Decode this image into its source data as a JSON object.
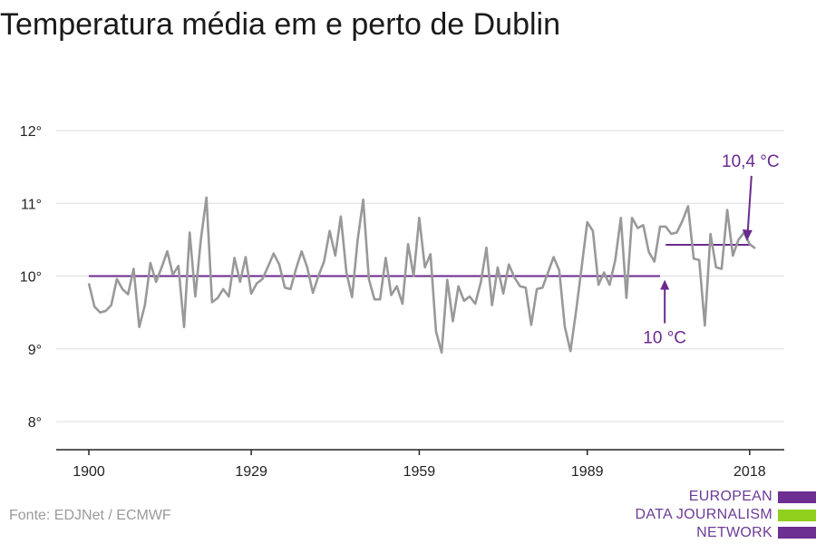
{
  "title": "Temperatura média em e perto de Dublin",
  "source": "Fonte: EDJNet / ECMWF",
  "logo": {
    "lines": [
      "EUROPEAN",
      "DATA JOURNALISM",
      "NETWORK"
    ],
    "colors": [
      "#6d2f91",
      "#8fd11d",
      "#6d2f91"
    ]
  },
  "colors": {
    "series": "#999999",
    "reference": "#6a2a8e",
    "grid": "#dddddd",
    "axis": "#222222"
  },
  "chart_data": {
    "type": "line",
    "title": "Temperatura média em e perto de Dublin",
    "xlabel": "",
    "ylabel": "",
    "xlim": [
      1900,
      2019
    ],
    "ylim": [
      7.6,
      12.4
    ],
    "grid": true,
    "x_ticks": [
      1900,
      1929,
      1959,
      1989,
      2018
    ],
    "y_ticks": [
      {
        "value": 8,
        "label": "8°"
      },
      {
        "value": 9,
        "label": "9°"
      },
      {
        "value": 10,
        "label": "10°"
      },
      {
        "value": 11,
        "label": "11°"
      },
      {
        "value": 12,
        "label": "12°"
      }
    ],
    "series": [
      {
        "x": [
          1900,
          1901,
          1902,
          1903,
          1904,
          1905,
          1906,
          1907,
          1908,
          1909,
          1910,
          1911,
          1912,
          1913,
          1914,
          1915,
          1916,
          1917,
          1918,
          1919,
          1920,
          1921,
          1922,
          1923,
          1924,
          1925,
          1926,
          1927,
          1928,
          1929,
          1930,
          1931,
          1932,
          1933,
          1934,
          1935,
          1936,
          1937,
          1938,
          1939,
          1940,
          1941,
          1942,
          1943,
          1944,
          1945,
          1946,
          1947,
          1948,
          1949,
          1950,
          1951,
          1952,
          1953,
          1954,
          1955,
          1956,
          1957,
          1958,
          1959,
          1960,
          1961,
          1962,
          1963,
          1964,
          1965,
          1966,
          1967,
          1968,
          1969,
          1970,
          1971,
          1972,
          1973,
          1974,
          1975,
          1976,
          1977,
          1978,
          1979,
          1980,
          1981,
          1982,
          1983,
          1984,
          1985,
          1986,
          1987,
          1988,
          1989,
          1990,
          1991,
          1992,
          1993,
          1994,
          1995,
          1996,
          1997,
          1998,
          1999,
          2000,
          2001,
          2002,
          2003,
          2004,
          2005,
          2006,
          2007,
          2008,
          2009,
          2010,
          2011,
          2012,
          2013,
          2014,
          2015,
          2016,
          2017,
          2018,
          2019
        ],
        "values": [
          9.9,
          9.58,
          9.5,
          9.52,
          9.6,
          9.96,
          9.82,
          9.75,
          10.1,
          9.3,
          9.6,
          10.18,
          9.92,
          10.12,
          10.34,
          10.02,
          10.14,
          9.3,
          10.6,
          9.72,
          10.5,
          11.08,
          9.64,
          9.7,
          9.82,
          9.72,
          10.25,
          9.92,
          10.26,
          9.76,
          9.9,
          9.96,
          10.13,
          10.31,
          10.16,
          9.84,
          9.82,
          10.1,
          10.34,
          10.12,
          9.77,
          10.0,
          10.2,
          10.62,
          10.28,
          10.82,
          10.05,
          9.71,
          10.5,
          11.05,
          9.96,
          9.68,
          9.68,
          10.25,
          9.74,
          9.86,
          9.62,
          10.44,
          10.0,
          10.8,
          10.12,
          10.3,
          9.24,
          8.95,
          9.95,
          9.38,
          9.86,
          9.66,
          9.72,
          9.62,
          9.92,
          10.39,
          9.6,
          10.12,
          9.76,
          10.16,
          9.98,
          9.86,
          9.84,
          9.33,
          9.82,
          9.84,
          10.05,
          10.26,
          10.08,
          9.3,
          8.97,
          9.52,
          10.12,
          10.74,
          10.62,
          9.88,
          10.05,
          9.88,
          10.22,
          10.8,
          9.7,
          10.8,
          10.66,
          10.7,
          10.33,
          10.2,
          10.68,
          10.68,
          10.58,
          10.6,
          10.76,
          10.96,
          10.24,
          10.22,
          9.32,
          10.58,
          10.12,
          10.1,
          10.91,
          10.28,
          10.5,
          10.6,
          10.44,
          10.38
        ]
      }
    ],
    "reference_lines": [
      {
        "value": 10.0,
        "from": 1900,
        "to": 2002,
        "label": "10 °C"
      },
      {
        "value": 10.43,
        "from": 2003,
        "to": 2018,
        "label": "10,4 °C"
      }
    ]
  }
}
